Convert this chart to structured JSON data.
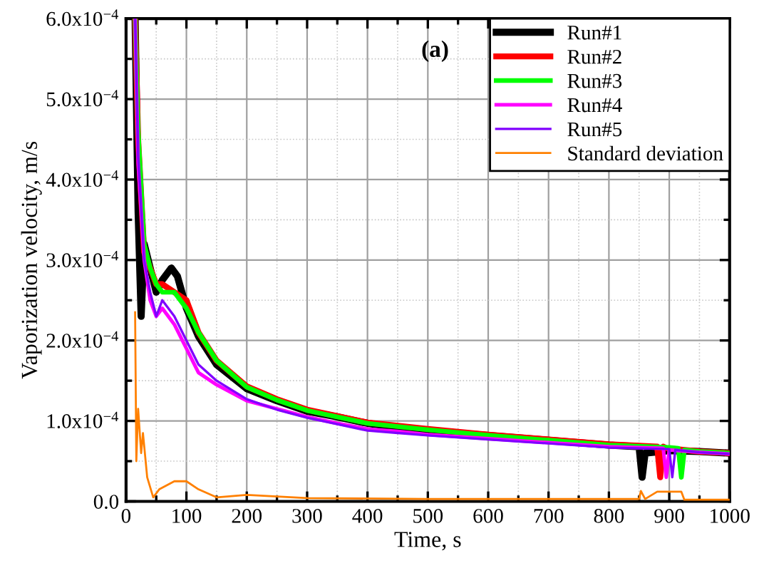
{
  "chart_data": {
    "type": "line",
    "xlabel": "Time, s",
    "ylabel": "Vaporization velocity, m/s",
    "annotations": [
      "(a)"
    ],
    "xlim": [
      0,
      1000
    ],
    "xticks": [
      0,
      100,
      200,
      300,
      400,
      500,
      600,
      700,
      800,
      900,
      1000
    ],
    "ylim": [
      0,
      0.0006
    ],
    "yticks": [
      {
        "value": 0,
        "label": "0.0"
      },
      {
        "value": 0.0001,
        "label": "1.0x10$^{−4}$"
      },
      {
        "value": 0.0002,
        "label": "2.0x10$^{−4}$"
      },
      {
        "value": 0.0003,
        "label": "3.0x10$^{−4}$"
      },
      {
        "value": 0.0004,
        "label": "4.0x10$^{−4}$"
      },
      {
        "value": 0.0005,
        "label": "5.0x10$^{−4}$"
      },
      {
        "value": 0.0006,
        "label": "6.0x10$^{−4}$"
      }
    ],
    "grid": true,
    "legend": "top right",
    "marker": "none",
    "line_style": "solid",
    "series": [
      {
        "name": "Run#1",
        "color": "#000000",
        "x": [
          15,
          20,
          25,
          30,
          40,
          50,
          60,
          75,
          85,
          100,
          120,
          150,
          200,
          250,
          300,
          350,
          400,
          450,
          500,
          600,
          700,
          800,
          850,
          855,
          860,
          900,
          950,
          1000
        ],
        "values": [
          0.0006,
          0.00036,
          0.00023,
          0.00032,
          0.00029,
          0.00026,
          0.000275,
          0.00029,
          0.00028,
          0.00024,
          0.000205,
          0.00017,
          0.00014,
          0.000125,
          0.000112,
          0.000105,
          9.7e-05,
          9.2e-05,
          8.8e-05,
          8.2e-05,
          7.6e-05,
          7e-05,
          6.8e-05,
          3e-05,
          6e-05,
          6.3e-05,
          6.2e-05,
          6e-05
        ]
      },
      {
        "name": "Run#2",
        "color": "#ff0000",
        "x": [
          15,
          20,
          30,
          40,
          50,
          60,
          80,
          100,
          120,
          150,
          200,
          250,
          300,
          350,
          400,
          450,
          500,
          600,
          700,
          800,
          880,
          885,
          890,
          895,
          950,
          1000
        ],
        "values": [
          0.0006,
          0.00045,
          0.00031,
          0.00029,
          0.00027,
          0.00027,
          0.00026,
          0.00025,
          0.00021,
          0.000175,
          0.000143,
          0.000127,
          0.000114,
          0.000106,
          9.8e-05,
          9.4e-05,
          9e-05,
          8.3e-05,
          7.7e-05,
          7.1e-05,
          6.8e-05,
          3e-05,
          6.8e-05,
          6.6e-05,
          6.2e-05,
          6e-05
        ]
      },
      {
        "name": "Run#3",
        "color": "#00ff00",
        "x": [
          15,
          20,
          30,
          40,
          50,
          60,
          80,
          100,
          120,
          150,
          200,
          250,
          300,
          350,
          400,
          450,
          500,
          600,
          700,
          800,
          900,
          915,
          920,
          925,
          950,
          1000
        ],
        "values": [
          0.0006,
          0.00046,
          0.00032,
          0.00029,
          0.00027,
          0.00026,
          0.00026,
          0.00024,
          0.00021,
          0.000175,
          0.000142,
          0.000126,
          0.000113,
          0.000105,
          9.7e-05,
          9.3e-05,
          8.9e-05,
          8.2e-05,
          7.6e-05,
          7e-05,
          6.7e-05,
          6.6e-05,
          3e-05,
          6.4e-05,
          6.2e-05,
          6e-05
        ]
      },
      {
        "name": "Run#4",
        "color": "#ff00ff",
        "x": [
          15,
          20,
          30,
          40,
          50,
          60,
          80,
          100,
          120,
          150,
          200,
          250,
          300,
          350,
          400,
          450,
          500,
          600,
          700,
          800,
          890,
          895,
          900,
          950,
          1000
        ],
        "values": [
          0.0006,
          0.00042,
          0.0003,
          0.00025,
          0.00023,
          0.00024,
          0.00022,
          0.00019,
          0.00016,
          0.000145,
          0.000125,
          0.000115,
          0.000105,
          9.7e-05,
          9e-05,
          8.7e-05,
          8.3e-05,
          7.8e-05,
          7.3e-05,
          6.8e-05,
          6.6e-05,
          3e-05,
          6.4e-05,
          6.1e-05,
          5.9e-05
        ]
      },
      {
        "name": "Run#5",
        "color": "#8000ff",
        "x": [
          15,
          20,
          30,
          40,
          50,
          60,
          80,
          100,
          120,
          150,
          200,
          250,
          300,
          350,
          400,
          450,
          500,
          600,
          700,
          800,
          900,
          905,
          910,
          950,
          1000
        ],
        "values": [
          0.0006,
          0.00043,
          0.0003,
          0.00026,
          0.00023,
          0.00025,
          0.00023,
          0.0002,
          0.00017,
          0.00015,
          0.000127,
          0.000114,
          0.000104,
          9.6e-05,
          8.8e-05,
          8.5e-05,
          8.2e-05,
          7.7e-05,
          7.2e-05,
          6.7e-05,
          6.5e-05,
          3e-05,
          6.4e-05,
          6.1e-05,
          5.9e-05
        ]
      },
      {
        "name": "Standard deviation",
        "color": "#ff8000",
        "x": [
          15,
          17,
          20,
          25,
          28,
          35,
          45,
          55,
          80,
          100,
          120,
          150,
          200,
          300,
          500,
          850,
          853,
          860,
          880,
          900,
          920,
          925,
          1000
        ],
        "values": [
          0.000235,
          5e-05,
          0.000115,
          6e-05,
          8.5e-05,
          3e-05,
          5e-06,
          1.5e-05,
          2.5e-05,
          2.5e-05,
          1.5e-05,
          5e-06,
          8e-06,
          4e-06,
          3e-06,
          3e-06,
          1.3e-05,
          3e-06,
          1.2e-05,
          1.2e-05,
          1.2e-05,
          2e-06,
          2e-06
        ]
      }
    ]
  }
}
